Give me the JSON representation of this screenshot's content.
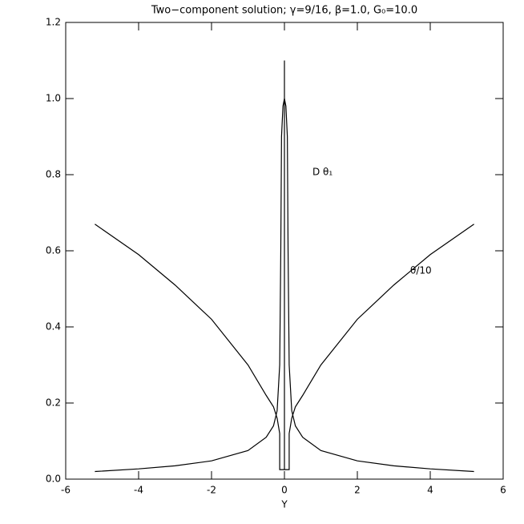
{
  "chart_data": {
    "type": "line",
    "title": "Two−component solution; γ=9/16, β=1.0, G₀=10.0",
    "x_label": "Y",
    "annotations": [
      "D θ₁",
      "θ/10"
    ],
    "color": "#000000",
    "xlim": [
      -6,
      6
    ],
    "xticks": [
      -6,
      -4,
      -2,
      0,
      2,
      4,
      6
    ],
    "ylim": [
      0,
      1.2
    ],
    "yticks": [
      {
        "value": 0,
        "label": "0.0"
      },
      {
        "value": 0.2,
        "label": "0.2"
      },
      {
        "value": 0.4,
        "label": "0.4"
      },
      {
        "value": 0.6,
        "label": "0.6"
      },
      {
        "value": 0.8,
        "label": "0.8"
      },
      {
        "value": 1,
        "label": "1.0"
      },
      {
        "value": 1.2,
        "label": "1.2"
      }
    ],
    "series": [
      {
        "x": [
          -5.2,
          -4,
          -3,
          -2,
          -1,
          -0.5,
          -0.3,
          -0.2,
          -0.13,
          -0.13,
          0.13,
          0.13,
          0.2,
          0.3,
          0.5,
          1,
          2,
          3,
          4,
          5.2
        ],
        "values": [
          0.67,
          0.59,
          0.51,
          0.42,
          0.3,
          0.22,
          0.19,
          0.16,
          0.12,
          0.025,
          0.025,
          0.12,
          0.16,
          0.19,
          0.22,
          0.3,
          0.42,
          0.51,
          0.59,
          0.67
        ]
      },
      {
        "x": [
          -5.2,
          -4,
          -3,
          -2,
          -1,
          -0.5,
          -0.3,
          -0.2,
          -0.13,
          -0.1,
          -0.08,
          -0.04,
          0,
          0.04,
          0.08,
          0.1,
          0.13,
          0.2,
          0.3,
          0.5,
          1,
          2,
          3,
          4,
          5.2
        ],
        "values": [
          0.02,
          0.027,
          0.035,
          0.048,
          0.075,
          0.11,
          0.14,
          0.18,
          0.3,
          0.6,
          0.9,
          0.98,
          1.0,
          0.98,
          0.9,
          0.6,
          0.3,
          0.18,
          0.14,
          0.11,
          0.075,
          0.048,
          0.035,
          0.027,
          0.02
        ]
      },
      {
        "x": [
          0,
          0
        ],
        "values": [
          0.025,
          1.1
        ]
      }
    ]
  }
}
